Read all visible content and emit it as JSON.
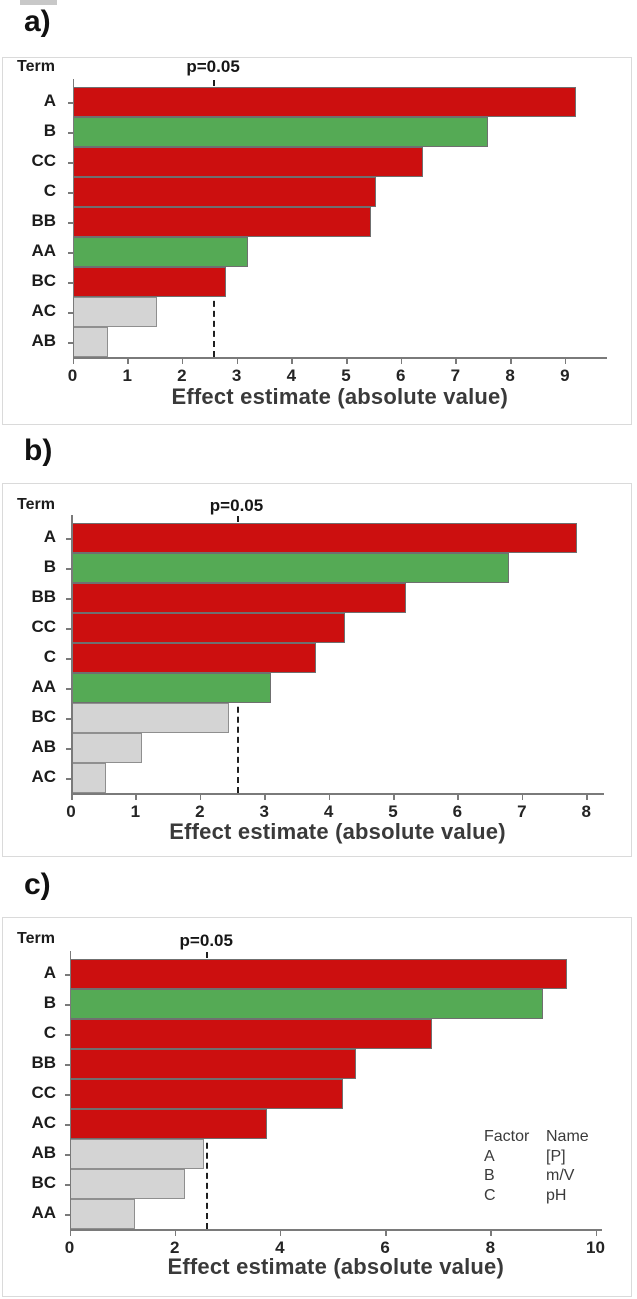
{
  "figure": {
    "term_header": "Term",
    "xlabel": "Effect estimate (absolute value)"
  },
  "colors": {
    "red": "#cc0f0f",
    "green": "#55aa55",
    "gray": "#d4d4d4",
    "gray_border": "#8f8f8f",
    "colored_border": "#6f6f6f",
    "axis": "#7a7a7a",
    "frame_border": "#dadada",
    "ref_line": "#1f1f1f"
  },
  "chart_data": [
    {
      "type": "bar",
      "orientation": "horizontal",
      "panel_label": "a)",
      "y_header": "Term",
      "xlabel": "Effect estimate (absolute value)",
      "reference_line": {
        "label": "p=0.05",
        "value": 2.57
      },
      "x_ticks": [
        0,
        1,
        2,
        3,
        4,
        5,
        6,
        7,
        8,
        9
      ],
      "xlim": [
        0,
        9.8
      ],
      "bars": [
        {
          "term": "A",
          "value": 9.2,
          "color": "red"
        },
        {
          "term": "B",
          "value": 7.6,
          "color": "green"
        },
        {
          "term": "CC",
          "value": 6.4,
          "color": "red"
        },
        {
          "term": "C",
          "value": 5.55,
          "color": "red"
        },
        {
          "term": "BB",
          "value": 5.45,
          "color": "red"
        },
        {
          "term": "AA",
          "value": 3.2,
          "color": "green"
        },
        {
          "term": "BC",
          "value": 2.8,
          "color": "red"
        },
        {
          "term": "AC",
          "value": 1.55,
          "color": "gray"
        },
        {
          "term": "AB",
          "value": 0.65,
          "color": "gray"
        }
      ]
    },
    {
      "type": "bar",
      "orientation": "horizontal",
      "panel_label": "b)",
      "y_header": "Term",
      "xlabel": "Effect estimate (absolute value)",
      "reference_line": {
        "label": "p=0.05",
        "value": 2.57
      },
      "x_ticks": [
        0,
        1,
        2,
        3,
        4,
        5,
        6,
        7,
        8
      ],
      "xlim": [
        0,
        8.3
      ],
      "bars": [
        {
          "term": "A",
          "value": 7.85,
          "color": "red"
        },
        {
          "term": "B",
          "value": 6.8,
          "color": "green"
        },
        {
          "term": "BB",
          "value": 5.2,
          "color": "red"
        },
        {
          "term": "CC",
          "value": 4.25,
          "color": "red"
        },
        {
          "term": "C",
          "value": 3.8,
          "color": "red"
        },
        {
          "term": "AA",
          "value": 3.1,
          "color": "green"
        },
        {
          "term": "BC",
          "value": 2.45,
          "color": "gray"
        },
        {
          "term": "AB",
          "value": 1.1,
          "color": "gray"
        },
        {
          "term": "AC",
          "value": 0.55,
          "color": "gray"
        }
      ]
    },
    {
      "type": "bar",
      "orientation": "horizontal",
      "panel_label": "c)",
      "y_header": "Term",
      "xlabel": "Effect estimate (absolute value)",
      "reference_line": {
        "label": "p=0.05",
        "value": 2.6
      },
      "x_ticks": [
        0,
        2,
        4,
        6,
        8,
        10
      ],
      "xlim": [
        0,
        10.1
      ],
      "bars": [
        {
          "term": "A",
          "value": 9.45,
          "color": "red"
        },
        {
          "term": "B",
          "value": 9.0,
          "color": "green"
        },
        {
          "term": "C",
          "value": 6.9,
          "color": "red"
        },
        {
          "term": "BB",
          "value": 5.45,
          "color": "red"
        },
        {
          "term": "CC",
          "value": 5.2,
          "color": "red"
        },
        {
          "term": "AC",
          "value": 3.75,
          "color": "red"
        },
        {
          "term": "AB",
          "value": 2.55,
          "color": "gray"
        },
        {
          "term": "BC",
          "value": 2.2,
          "color": "gray"
        },
        {
          "term": "AA",
          "value": 1.25,
          "color": "gray"
        }
      ],
      "legend": {
        "col_headers": [
          "Factor",
          "Name"
        ],
        "rows": [
          [
            "A",
            "[P]"
          ],
          [
            "B",
            "m/V"
          ],
          [
            "C",
            "pH"
          ]
        ]
      }
    }
  ]
}
